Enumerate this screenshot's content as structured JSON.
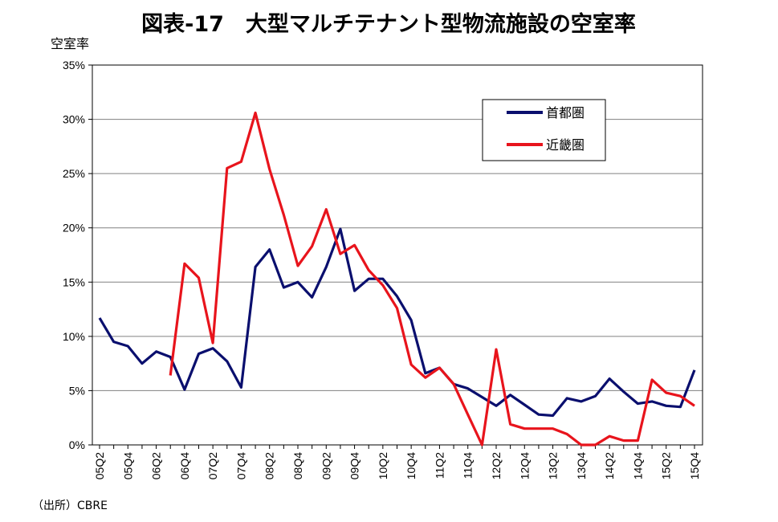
{
  "chart_data": {
    "type": "line",
    "title": "図表-17　大型マルチテナント型物流施設の空室率",
    "ylabel": "空室率",
    "xlabel": "",
    "ylim": [
      0,
      35
    ],
    "yticks": [
      0,
      5,
      10,
      15,
      20,
      25,
      30,
      35
    ],
    "ytick_labels": [
      "0%",
      "5%",
      "10%",
      "15%",
      "20%",
      "25%",
      "30%",
      "35%"
    ],
    "grid": true,
    "legend_position": "top-right",
    "categories": [
      "05Q2",
      "05Q3",
      "05Q4",
      "06Q1",
      "06Q2",
      "06Q3",
      "06Q4",
      "07Q1",
      "07Q2",
      "07Q3",
      "07Q4",
      "08Q1",
      "08Q2",
      "08Q3",
      "08Q4",
      "09Q1",
      "09Q2",
      "09Q3",
      "09Q4",
      "10Q1",
      "10Q2",
      "10Q3",
      "10Q4",
      "11Q1",
      "11Q2",
      "11Q3",
      "11Q4",
      "12Q1",
      "12Q2",
      "12Q3",
      "12Q4",
      "13Q1",
      "13Q2",
      "13Q3",
      "13Q4",
      "14Q1",
      "14Q2",
      "14Q3",
      "14Q4",
      "15Q1",
      "15Q2",
      "15Q3",
      "15Q4"
    ],
    "tick_labels": [
      "05Q2",
      "05Q4",
      "06Q2",
      "06Q4",
      "07Q2",
      "07Q4",
      "08Q2",
      "08Q4",
      "09Q2",
      "09Q4",
      "10Q2",
      "10Q4",
      "11Q2",
      "11Q4",
      "12Q2",
      "12Q4",
      "13Q2",
      "13Q4",
      "14Q2",
      "14Q4",
      "15Q2",
      "15Q4"
    ],
    "series": [
      {
        "name": "首都圏",
        "color": "#0a0f6e",
        "values": [
          11.7,
          9.5,
          9.1,
          7.5,
          8.6,
          8.1,
          5.1,
          8.4,
          8.9,
          7.7,
          5.3,
          16.4,
          18.0,
          14.5,
          15.0,
          13.6,
          16.4,
          19.9,
          14.2,
          15.3,
          15.3,
          13.7,
          11.5,
          6.6,
          7.1,
          5.6,
          5.2,
          4.4,
          3.6,
          4.6,
          3.7,
          2.8,
          2.7,
          4.3,
          4.0,
          4.5,
          6.1,
          4.9,
          3.8,
          4.0,
          3.6,
          3.5,
          6.9
        ]
      },
      {
        "name": "近畿圏",
        "color": "#e8141c",
        "values": [
          null,
          null,
          null,
          null,
          null,
          6.4,
          16.7,
          15.4,
          9.4,
          25.5,
          26.1,
          30.6,
          25.4,
          21.2,
          16.5,
          18.3,
          21.7,
          17.6,
          18.4,
          16.1,
          14.7,
          12.6,
          7.4,
          6.2,
          7.1,
          5.6,
          2.8,
          0.0,
          8.8,
          1.9,
          1.5,
          1.5,
          1.5,
          1.0,
          0.0,
          0.0,
          0.8,
          0.4,
          0.4,
          6.0,
          4.8,
          4.5,
          3.6
        ]
      }
    ]
  },
  "source": "（出所）CBRE"
}
